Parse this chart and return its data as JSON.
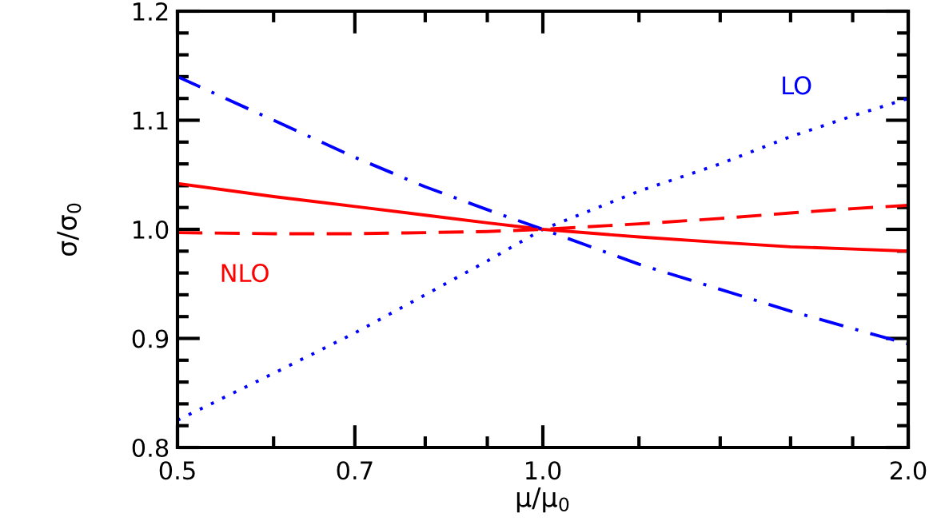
{
  "chart_data": {
    "type": "line",
    "xlabel": "μ/μ$_{0}$",
    "ylabel": "σ/σ$_{0}$",
    "log": "x",
    "xlim": [
      0.5,
      2.0
    ],
    "ylim": [
      0.8,
      1.2
    ],
    "xticks": [
      0.5,
      {
        "value": 0.6,
        "label": null
      },
      0.7,
      {
        "value": 0.8,
        "label": null
      },
      {
        "value": 0.9,
        "label": null
      },
      {
        "value": 1.0,
        "label": "1.0"
      },
      {
        "value": 1.2,
        "label": null
      },
      {
        "value": 1.4,
        "label": null
      },
      {
        "value": 1.6,
        "label": null
      },
      {
        "value": 1.8,
        "label": null
      },
      {
        "value": 2.0,
        "label": "2.0"
      }
    ],
    "yticks": [
      0.8,
      {
        "value": 0.82,
        "label": null
      },
      {
        "value": 0.84,
        "label": null
      },
      {
        "value": 0.86,
        "label": null
      },
      {
        "value": 0.88,
        "label": null
      },
      0.9,
      {
        "value": 0.92,
        "label": null
      },
      {
        "value": 0.94,
        "label": null
      },
      {
        "value": 0.96,
        "label": null
      },
      {
        "value": 0.98,
        "label": null
      },
      {
        "value": 1.0,
        "label": "1.0"
      },
      {
        "value": 1.02,
        "label": null
      },
      {
        "value": 1.04,
        "label": null
      },
      {
        "value": 1.06,
        "label": null
      },
      {
        "value": 1.08,
        "label": null
      },
      1.1,
      {
        "value": 1.12,
        "label": null
      },
      {
        "value": 1.14,
        "label": null
      },
      {
        "value": 1.16,
        "label": null
      },
      {
        "value": 1.18,
        "label": null
      },
      1.2
    ],
    "grid": false,
    "legend": false,
    "annotations": [
      "LO",
      "NLO"
    ],
    "series": [
      {
        "color": "#0000ff",
        "line_style": "dotted",
        "x": [
          0.5,
          0.6,
          0.7,
          0.8,
          0.9,
          1.0,
          1.2,
          1.4,
          1.6,
          1.8,
          2.0
        ],
        "values": [
          0.825,
          0.868,
          0.905,
          0.94,
          0.971,
          1.0,
          1.035,
          1.06,
          1.085,
          1.104,
          1.12
        ]
      },
      {
        "color": "#ff0000",
        "line_style": "solid",
        "x": [
          0.5,
          0.6,
          0.7,
          0.8,
          0.9,
          1.0,
          1.2,
          1.4,
          1.6,
          1.8,
          2.0
        ],
        "values": [
          1.042,
          1.03,
          1.021,
          1.013,
          1.006,
          1.0,
          0.993,
          0.988,
          0.984,
          0.982,
          0.98
        ]
      },
      {
        "color": "#0000ff",
        "line_style": "dashdot",
        "x": [
          0.5,
          0.6,
          0.7,
          0.8,
          0.9,
          1.0,
          1.2,
          1.4,
          1.6,
          1.8,
          2.0
        ],
        "values": [
          1.14,
          1.1,
          1.066,
          1.039,
          1.018,
          1.0,
          0.968,
          0.945,
          0.925,
          0.909,
          0.895
        ]
      },
      {
        "color": "#ff0000",
        "line_style": "dashed",
        "x": [
          0.5,
          0.6,
          0.7,
          0.8,
          0.9,
          1.0,
          1.2,
          1.4,
          1.6,
          1.8,
          2.0
        ],
        "values": [
          0.997,
          0.996,
          0.996,
          0.997,
          0.998,
          1.0,
          1.005,
          1.01,
          1.015,
          1.019,
          1.022
        ]
      }
    ]
  }
}
